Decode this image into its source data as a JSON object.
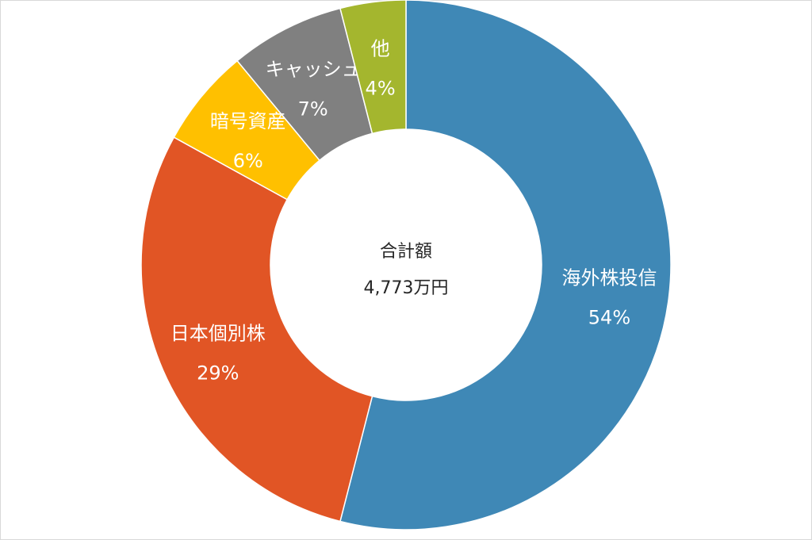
{
  "chart_data": {
    "type": "pie",
    "variant": "donut",
    "title": "",
    "center_label": "合計額",
    "center_value": "4,773万円",
    "slices": [
      {
        "name": "海外株投信",
        "value": 54,
        "percent_label": "54%",
        "color": "#3f88b6",
        "label_color": "#ffffff"
      },
      {
        "name": "日本個別株",
        "value": 29,
        "percent_label": "29%",
        "color": "#e15525",
        "label_color": "#ffffff"
      },
      {
        "name": "暗号資産",
        "value": 6,
        "percent_label": "6%",
        "color": "#ffc000",
        "label_color": "#ffffff"
      },
      {
        "name": "キャッシュ",
        "value": 7,
        "percent_label": "7%",
        "color": "#808080",
        "label_color": "#ffffff"
      },
      {
        "name": "他",
        "value": 4,
        "percent_label": "4%",
        "color": "#a4b62e",
        "label_color": "#ffffff"
      }
    ],
    "start_angle_deg": 0,
    "direction": "clockwise",
    "legend": "none"
  }
}
